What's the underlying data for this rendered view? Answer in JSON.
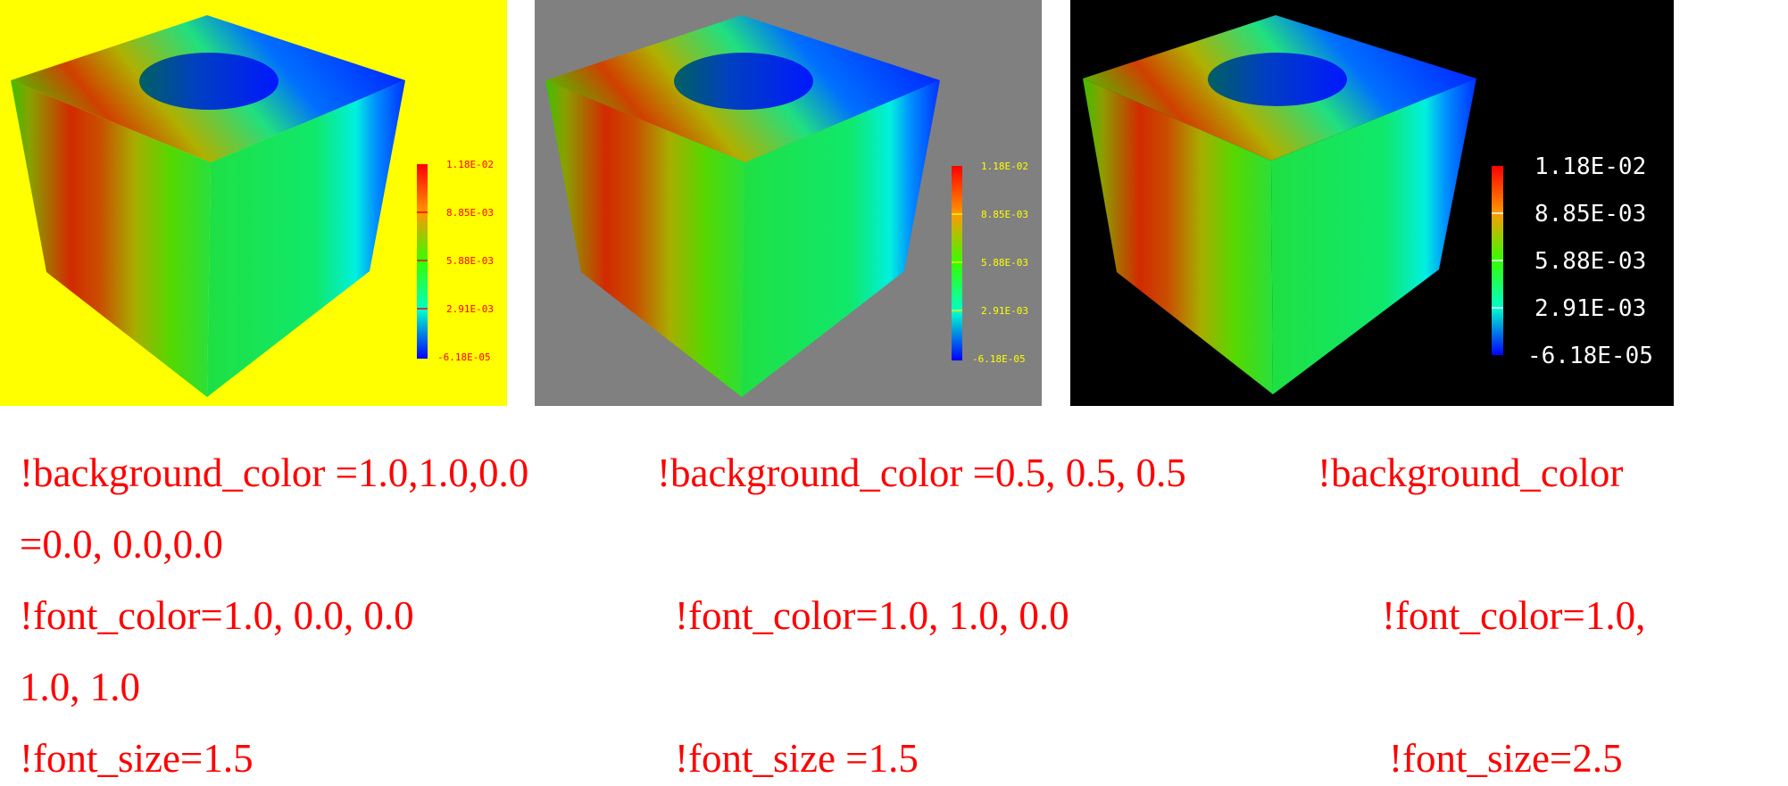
{
  "panels": [
    {
      "background": "#ffff00",
      "font_color": "#ff0000",
      "legend_labels": [
        "1.18E-02",
        "8.85E-03",
        "5.88E-03",
        "2.91E-03",
        "-6.18E-05"
      ]
    },
    {
      "background": "#808080",
      "font_color": "#ffff00",
      "legend_labels": [
        "1.18E-02",
        "8.85E-03",
        "5.88E-03",
        "2.91E-03",
        "-6.18E-05"
      ]
    },
    {
      "background": "#000000",
      "font_color": "#ffffff",
      "legend_labels": [
        "1.18E-02",
        "8.85E-03",
        "5.88E-03",
        "2.91E-03",
        "-6.18E-05"
      ]
    }
  ],
  "captions": {
    "background_1": "!background_color =1.0,1.0,0.0",
    "background_2": "!background_color =0.5, 0.5, 0.5",
    "background_3a": "!background_color",
    "background_3b": "=0.0, 0.0,0.0",
    "font_color_1": "!font_color=1.0, 0.0, 0.0",
    "font_color_2": "!font_color=1.0, 1.0, 0.0",
    "font_color_3a": "!font_color=1.0,",
    "font_color_3b": "1.0, 1.0",
    "font_size_1": "!font_size=1.5",
    "font_size_2": "!font_size =1.5",
    "font_size_3": "!font_size=2.5"
  },
  "caption_color": "#ff0000"
}
